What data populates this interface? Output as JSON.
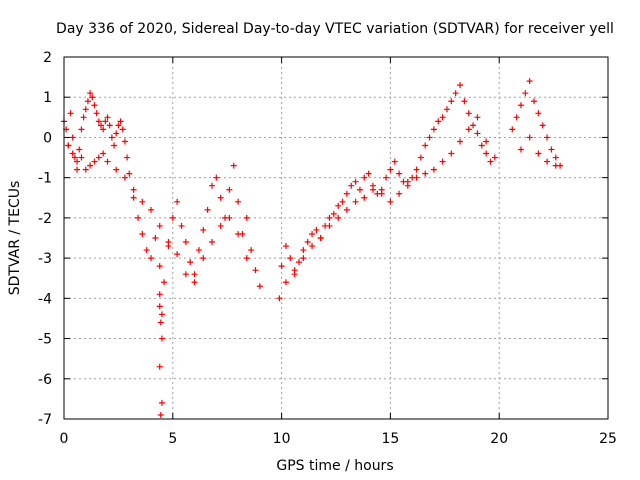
{
  "chart_data": {
    "type": "scatter",
    "title": "Day 336 of 2020, Sidereal Day-to-day VTEC variation (SDTVAR) for receiver yell",
    "xlabel": "GPS time / hours",
    "ylabel": "SDTVAR / TECUs",
    "xlim": [
      0,
      25
    ],
    "ylim": [
      -7,
      2
    ],
    "xticks": [
      0,
      5,
      10,
      15,
      20,
      25
    ],
    "yticks": [
      -7,
      -6,
      -5,
      -4,
      -3,
      -2,
      -1,
      0,
      1,
      2
    ],
    "xtick_labels": [
      "0",
      "5",
      "10",
      "15",
      "20",
      "25"
    ],
    "ytick_labels": [
      "-7",
      "-6",
      "-5",
      "-4",
      "-3",
      "-2",
      "-1",
      "0",
      "1",
      "2"
    ],
    "grid": true,
    "marker": "plus",
    "series": [
      {
        "name": "SDTVAR",
        "color": "#ff0000",
        "x": [
          0.0,
          0.1,
          0.2,
          0.3,
          0.4,
          0.5,
          0.6,
          0.7,
          0.8,
          0.9,
          1.0,
          1.1,
          1.2,
          1.3,
          1.4,
          1.5,
          1.6,
          1.7,
          1.8,
          1.9,
          2.0,
          2.1,
          2.2,
          2.3,
          2.4,
          2.5,
          2.6,
          2.7,
          2.8,
          2.9,
          3.0,
          3.2,
          3.4,
          3.6,
          3.8,
          4.0,
          4.2,
          4.4,
          4.6,
          4.8,
          5.0,
          5.2,
          5.4,
          5.6,
          5.8,
          6.0,
          6.2,
          6.4,
          6.6,
          6.8,
          7.0,
          7.2,
          7.4,
          7.6,
          7.8,
          8.0,
          8.2,
          8.4,
          8.6,
          8.8,
          9.0,
          9.9,
          10.0,
          10.2,
          10.4,
          10.6,
          10.8,
          11.0,
          11.2,
          11.4,
          11.6,
          11.8,
          12.0,
          12.2,
          12.4,
          12.6,
          12.8,
          13.0,
          13.2,
          13.4,
          13.6,
          13.8,
          14.0,
          14.2,
          14.4,
          14.6,
          14.8,
          15.0,
          15.2,
          15.4,
          15.6,
          15.8,
          16.0,
          16.2,
          16.4,
          16.6,
          16.8,
          17.0,
          17.2,
          17.4,
          17.6,
          17.8,
          18.0,
          18.2,
          18.4,
          18.6,
          18.8,
          19.0,
          19.2,
          19.4,
          19.6,
          19.8,
          20.6,
          20.8,
          21.0,
          21.2,
          21.4,
          21.6,
          21.8,
          22.0,
          22.2,
          22.4,
          22.6,
          22.8,
          0.2,
          0.4,
          0.6,
          0.8,
          1.0,
          1.2,
          1.4,
          1.6,
          1.8,
          2.0,
          2.4,
          2.8,
          3.2,
          3.6,
          4.0,
          4.4,
          4.8,
          5.2,
          5.6,
          6.0,
          6.4,
          6.8,
          7.2,
          7.6,
          8.0,
          8.4,
          10.2,
          10.6,
          11.0,
          11.4,
          11.8,
          12.2,
          12.6,
          13.0,
          13.4,
          13.8,
          14.2,
          14.6,
          15.0,
          15.4,
          15.8,
          16.2,
          16.6,
          17.0,
          17.4,
          17.8,
          18.2,
          18.6,
          19.0,
          19.4,
          21.0,
          21.4,
          21.8,
          22.2,
          22.6,
          4.4,
          4.45,
          4.5,
          4.4,
          4.5,
          4.45,
          4.4,
          4.5
        ],
        "y": [
          0.4,
          0.2,
          -0.2,
          0.6,
          0.0,
          -0.5,
          -0.8,
          -0.3,
          0.2,
          0.5,
          0.7,
          0.9,
          1.1,
          1.0,
          0.8,
          0.6,
          0.4,
          0.3,
          0.2,
          0.4,
          0.5,
          0.3,
          0.0,
          -0.2,
          0.1,
          0.3,
          0.4,
          0.2,
          -0.1,
          -0.5,
          -0.9,
          -1.5,
          -2.0,
          -2.4,
          -2.8,
          -3.0,
          -2.5,
          -3.2,
          -3.6,
          -2.7,
          -2.0,
          -1.6,
          -2.2,
          -2.6,
          -3.1,
          -3.4,
          -2.8,
          -2.3,
          -1.8,
          -1.2,
          -1.0,
          -1.5,
          -2.0,
          -1.3,
          -0.7,
          -1.6,
          -2.4,
          -2.0,
          -2.8,
          -3.3,
          -3.7,
          -4.0,
          -3.2,
          -2.7,
          -3.0,
          -3.4,
          -3.1,
          -2.8,
          -2.6,
          -2.4,
          -2.3,
          -2.5,
          -2.2,
          -2.0,
          -1.9,
          -1.7,
          -1.6,
          -1.4,
          -1.2,
          -1.1,
          -1.3,
          -1.0,
          -0.9,
          -1.2,
          -1.4,
          -1.3,
          -1.0,
          -0.8,
          -0.6,
          -0.9,
          -1.1,
          -1.2,
          -1.0,
          -0.8,
          -0.5,
          -0.2,
          0.0,
          0.2,
          0.4,
          0.5,
          0.7,
          0.9,
          1.1,
          1.3,
          0.9,
          0.6,
          0.3,
          0.1,
          -0.2,
          -0.4,
          -0.6,
          -0.5,
          0.2,
          0.5,
          0.8,
          1.1,
          1.4,
          0.9,
          0.6,
          0.3,
          0.0,
          -0.3,
          -0.5,
          -0.7,
          -0.2,
          -0.4,
          -0.6,
          -0.5,
          -0.8,
          -0.7,
          -0.6,
          -0.5,
          -0.4,
          -0.6,
          -0.8,
          -1.0,
          -1.3,
          -1.6,
          -1.8,
          -2.2,
          -2.6,
          -2.9,
          -3.4,
          -3.6,
          -3.0,
          -2.6,
          -2.2,
          -2.0,
          -2.4,
          -3.0,
          -3.6,
          -3.3,
          -3.0,
          -2.7,
          -2.5,
          -2.2,
          -2.0,
          -1.8,
          -1.6,
          -1.5,
          -1.3,
          -1.4,
          -1.6,
          -1.4,
          -1.1,
          -1.0,
          -0.9,
          -0.8,
          -0.6,
          -0.4,
          -0.1,
          0.2,
          0.5,
          -0.1,
          -0.3,
          0.0,
          -0.4,
          -0.6,
          -0.7,
          -4.2,
          -4.6,
          -5.0,
          -5.7,
          -6.6,
          -6.9,
          -3.9,
          -4.4
        ]
      }
    ]
  }
}
